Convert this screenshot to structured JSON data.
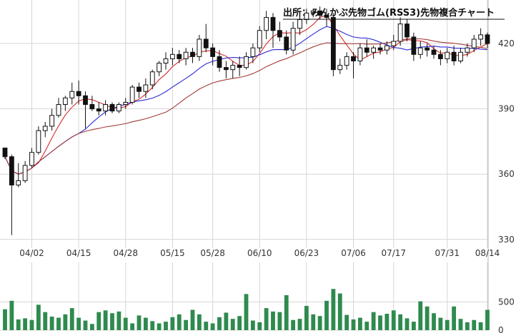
{
  "chart_data": {
    "type": "candlestick",
    "title": "出所：みんかぶ先物ゴム(RSS3)先物複合チャート",
    "x_tick_labels": [
      "04/02",
      "04/15",
      "04/28",
      "05/15",
      "05/28",
      "06/10",
      "06/23",
      "07/06",
      "07/17",
      "07/31",
      "08/14"
    ],
    "price_ticks": [
      330,
      360,
      390,
      420
    ],
    "price_ylim": [
      326,
      440
    ],
    "volume_ticks": [
      0,
      500
    ],
    "volume_ylim": [
      0,
      1200
    ],
    "grid": true,
    "colors": {
      "up": "#ffffff",
      "down": "#111111",
      "ma_short": "#d42a2a",
      "ma_mid": "#2b2bd6",
      "ma_long": "#a33a3a",
      "volume": "#2f8a4e",
      "grid": "#d6d6d6"
    },
    "series": [
      {
        "type": "ohlc",
        "values": [
          [
            372,
            372,
            367,
            368
          ],
          [
            368,
            369,
            332,
            355
          ],
          [
            355,
            365,
            354,
            357
          ],
          [
            357,
            366,
            356,
            364
          ],
          [
            364,
            372,
            363,
            370
          ],
          [
            370,
            382,
            369,
            380
          ],
          [
            380,
            384,
            377,
            382
          ],
          [
            382,
            390,
            380,
            387
          ],
          [
            387,
            395,
            386,
            392
          ],
          [
            392,
            396,
            389,
            395
          ],
          [
            395,
            402,
            392,
            398
          ],
          [
            398,
            403,
            392,
            396
          ],
          [
            396,
            398,
            381,
            392
          ],
          [
            392,
            396,
            389,
            390
          ],
          [
            390,
            393,
            387,
            389
          ],
          [
            389,
            394,
            387,
            392
          ],
          [
            392,
            393,
            388,
            389
          ],
          [
            389,
            393,
            388,
            392
          ],
          [
            392,
            395,
            390,
            393
          ],
          [
            393,
            401,
            392,
            400
          ],
          [
            400,
            402,
            395,
            398
          ],
          [
            398,
            404,
            395,
            401
          ],
          [
            401,
            408,
            399,
            407
          ],
          [
            407,
            412,
            405,
            411
          ],
          [
            411,
            416,
            408,
            413
          ],
          [
            413,
            418,
            410,
            415
          ],
          [
            415,
            417,
            411,
            413
          ],
          [
            413,
            418,
            410,
            416
          ],
          [
            416,
            418,
            411,
            414
          ],
          [
            414,
            424,
            412,
            422
          ],
          [
            422,
            429,
            416,
            418
          ],
          [
            418,
            420,
            410,
            414
          ],
          [
            414,
            417,
            407,
            409
          ],
          [
            409,
            412,
            404,
            408
          ],
          [
            408,
            412,
            404,
            410
          ],
          [
            410,
            414,
            405,
            409
          ],
          [
            409,
            416,
            408,
            414
          ],
          [
            414,
            420,
            411,
            418
          ],
          [
            418,
            428,
            416,
            426
          ],
          [
            426,
            435,
            422,
            432
          ],
          [
            432,
            434,
            418,
            426
          ],
          [
            426,
            430,
            421,
            423
          ],
          [
            423,
            426,
            415,
            417
          ],
          [
            417,
            430,
            415,
            427
          ],
          [
            427,
            433,
            424,
            431
          ],
          [
            431,
            436,
            429,
            434
          ],
          [
            434,
            436,
            432,
            435
          ],
          [
            435,
            437,
            431,
            433
          ],
          [
            433,
            436,
            428,
            432
          ],
          [
            432,
            434,
            405,
            408
          ],
          [
            408,
            413,
            406,
            410
          ],
          [
            410,
            416,
            408,
            414
          ],
          [
            414,
            416,
            404,
            412
          ],
          [
            412,
            420,
            410,
            418
          ],
          [
            418,
            422,
            414,
            416
          ],
          [
            416,
            419,
            413,
            418
          ],
          [
            418,
            420,
            415,
            417
          ],
          [
            417,
            421,
            415,
            419
          ],
          [
            419,
            424,
            417,
            421
          ],
          [
            421,
            432,
            419,
            429
          ],
          [
            429,
            431,
            421,
            423
          ],
          [
            423,
            425,
            412,
            415
          ],
          [
            415,
            421,
            413,
            418
          ],
          [
            418,
            420,
            414,
            417
          ],
          [
            417,
            419,
            413,
            415
          ],
          [
            415,
            417,
            410,
            413
          ],
          [
            413,
            418,
            411,
            416
          ],
          [
            416,
            419,
            410,
            412
          ],
          [
            412,
            418,
            411,
            416
          ],
          [
            416,
            420,
            414,
            418
          ],
          [
            418,
            424,
            416,
            422
          ],
          [
            422,
            427,
            419,
            424
          ],
          [
            424,
            425,
            418,
            420
          ]
        ]
      },
      {
        "type": "volume",
        "values": [
          370,
          520,
          190,
          210,
          180,
          450,
          320,
          240,
          220,
          280,
          390,
          220,
          170,
          110,
          320,
          350,
          300,
          330,
          220,
          120,
          260,
          220,
          160,
          120,
          150,
          230,
          280,
          180,
          360,
          280,
          150,
          120,
          230,
          310,
          200,
          250,
          640,
          170,
          140,
          390,
          330,
          320,
          620,
          180,
          200,
          430,
          280,
          250,
          520,
          730,
          650,
          270,
          190,
          220,
          150,
          320,
          260,
          290,
          350,
          280,
          210,
          150,
          510,
          420,
          300,
          220,
          180,
          420,
          200,
          140,
          180,
          140,
          360
        ]
      }
    ]
  }
}
